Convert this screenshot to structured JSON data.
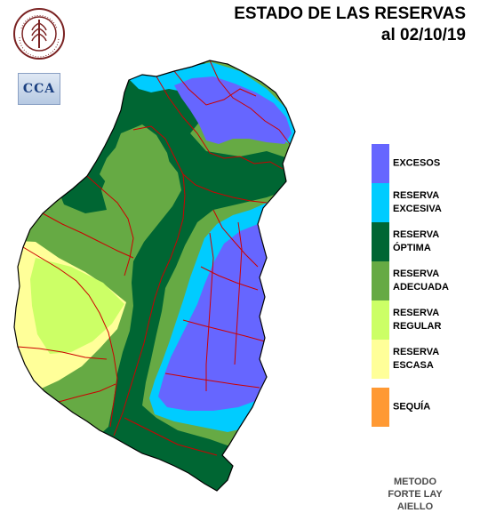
{
  "title": {
    "line1": "ESTADO DE LAS RESERVAS",
    "line2": "al 02/10/19"
  },
  "logos": {
    "bolsa": {
      "icon": "bolsa-cereales-seal",
      "ring_text_top": "BOLSA DE CEREALES",
      "ring_text_bottom": "DE ENTRE RIOS"
    },
    "cca": {
      "text": "CCA"
    }
  },
  "legend": [
    {
      "label_line1": "EXCESOS",
      "label_line2": "",
      "color": "#6666ff"
    },
    {
      "label_line1": "RESERVA",
      "label_line2": "EXCESIVA",
      "color": "#00ccff"
    },
    {
      "label_line1": "RESERVA",
      "label_line2": "ÓPTIMA",
      "color": "#006633"
    },
    {
      "label_line1": "RESERVA",
      "label_line2": "ADECUADA",
      "color": "#66aa44"
    },
    {
      "label_line1": "RESERVA",
      "label_line2": "REGULAR",
      "color": "#ccff66"
    },
    {
      "label_line1": "RESERVA",
      "label_line2": "ESCASA",
      "color": "#ffff99"
    },
    {
      "label_line1": "SEQUÍA",
      "label_line2": "",
      "color": "#ff9933"
    }
  ],
  "method": {
    "line1": "METODO",
    "line2": "FORTE LAY",
    "line3": "AIELLO"
  },
  "map": {
    "province_outline_color": "#000000",
    "department_border_color": "#cc0000"
  }
}
